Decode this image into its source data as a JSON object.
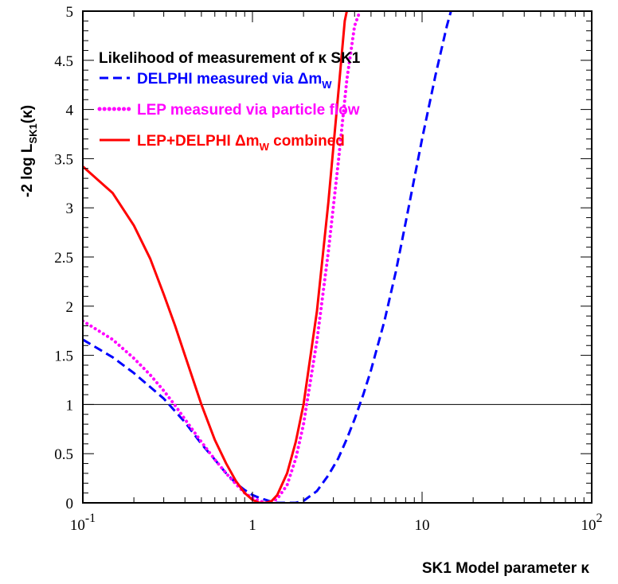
{
  "chart_data": {
    "type": "line",
    "title": "",
    "xlabel": "SK1 Model parameter κ",
    "ylabel_main": "-2 log L",
    "ylabel_sub": "SK1",
    "ylabel_tail": "(κ)",
    "xscale": "log",
    "xlim": [
      0.1,
      100
    ],
    "ylim": [
      0,
      5
    ],
    "x_ticks": [
      {
        "value": 0.1,
        "base": "10",
        "exp": "-1"
      },
      {
        "value": 1,
        "base": "1",
        "exp": ""
      },
      {
        "value": 10,
        "base": "10",
        "exp": ""
      },
      {
        "value": 100,
        "base": "10",
        "exp": "2"
      }
    ],
    "y_ticks": [
      "0",
      "0.5",
      "1",
      "1.5",
      "2",
      "2.5",
      "3",
      "3.5",
      "4",
      "4.5",
      "5"
    ],
    "reference_line": {
      "y": 1,
      "color": "#000000"
    },
    "legend": {
      "title": "Likelihood of measurement of κ SK1",
      "placement": "top-left",
      "entries": [
        {
          "prefix": "DELPHI measured via Δm",
          "sub": "W",
          "suffix": "",
          "color": "#0000ff",
          "style": "dashed"
        },
        {
          "prefix": "LEP measured via particle flow",
          "sub": "",
          "suffix": "",
          "color": "#ff00ff",
          "style": "dotted"
        },
        {
          "prefix": "LEP+DELPHI Δm",
          "sub": "W",
          "suffix": " combined",
          "color": "#ff0000",
          "style": "solid"
        }
      ]
    },
    "series": [
      {
        "name": "DELPHI measured via ΔmW",
        "color": "#0000ff",
        "style": "dashed",
        "points": [
          [
            0.1,
            1.66
          ],
          [
            0.15,
            1.48
          ],
          [
            0.2,
            1.32
          ],
          [
            0.3,
            1.06
          ],
          [
            0.4,
            0.82
          ],
          [
            0.5,
            0.6
          ],
          [
            0.6,
            0.44
          ],
          [
            0.7,
            0.3
          ],
          [
            0.8,
            0.2
          ],
          [
            0.9,
            0.13
          ],
          [
            1.0,
            0.08
          ],
          [
            1.1,
            0.05
          ],
          [
            1.2,
            0.03
          ],
          [
            1.3,
            0.01
          ],
          [
            1.4,
            0.0
          ],
          [
            1.6,
            0.0
          ],
          [
            1.8,
            0.0
          ],
          [
            2.0,
            0.02
          ],
          [
            2.4,
            0.12
          ],
          [
            2.8,
            0.28
          ],
          [
            3.2,
            0.45
          ],
          [
            3.6,
            0.65
          ],
          [
            4.0,
            0.85
          ],
          [
            4.5,
            1.1
          ],
          [
            5.0,
            1.35
          ],
          [
            6.0,
            1.85
          ],
          [
            7.0,
            2.35
          ],
          [
            8.0,
            2.85
          ],
          [
            9.0,
            3.3
          ],
          [
            10.0,
            3.7
          ],
          [
            12.0,
            4.35
          ],
          [
            14.0,
            4.85
          ],
          [
            14.8,
            5.0
          ]
        ]
      },
      {
        "name": "LEP measured via particle flow",
        "color": "#ff00ff",
        "style": "dotted",
        "points": [
          [
            0.1,
            1.85
          ],
          [
            0.15,
            1.66
          ],
          [
            0.2,
            1.47
          ],
          [
            0.25,
            1.3
          ],
          [
            0.3,
            1.14
          ],
          [
            0.35,
            0.99
          ],
          [
            0.4,
            0.85
          ],
          [
            0.5,
            0.62
          ],
          [
            0.6,
            0.44
          ],
          [
            0.7,
            0.3
          ],
          [
            0.8,
            0.19
          ],
          [
            0.9,
            0.1
          ],
          [
            1.0,
            0.05
          ],
          [
            1.1,
            0.02
          ],
          [
            1.2,
            0.0
          ],
          [
            1.3,
            0.01
          ],
          [
            1.4,
            0.04
          ],
          [
            1.6,
            0.18
          ],
          [
            1.8,
            0.45
          ],
          [
            2.0,
            0.8
          ],
          [
            2.4,
            1.65
          ],
          [
            2.8,
            2.55
          ],
          [
            3.2,
            3.45
          ],
          [
            3.6,
            4.3
          ],
          [
            4.0,
            4.85
          ],
          [
            4.3,
            5.0
          ]
        ]
      },
      {
        "name": "LEP+DELPHI ΔmW combined",
        "color": "#ff0000",
        "style": "solid",
        "points": [
          [
            0.1,
            3.42
          ],
          [
            0.15,
            3.15
          ],
          [
            0.2,
            2.82
          ],
          [
            0.25,
            2.48
          ],
          [
            0.3,
            2.12
          ],
          [
            0.35,
            1.8
          ],
          [
            0.4,
            1.5
          ],
          [
            0.5,
            1.0
          ],
          [
            0.6,
            0.64
          ],
          [
            0.7,
            0.4
          ],
          [
            0.8,
            0.22
          ],
          [
            0.9,
            0.1
          ],
          [
            1.0,
            0.03
          ],
          [
            1.1,
            0.0
          ],
          [
            1.2,
            0.0
          ],
          [
            1.3,
            0.02
          ],
          [
            1.4,
            0.08
          ],
          [
            1.6,
            0.3
          ],
          [
            1.8,
            0.62
          ],
          [
            2.0,
            1.0
          ],
          [
            2.4,
            1.95
          ],
          [
            2.8,
            3.05
          ],
          [
            3.2,
            4.15
          ],
          [
            3.5,
            4.9
          ],
          [
            3.6,
            5.0
          ]
        ]
      }
    ]
  }
}
